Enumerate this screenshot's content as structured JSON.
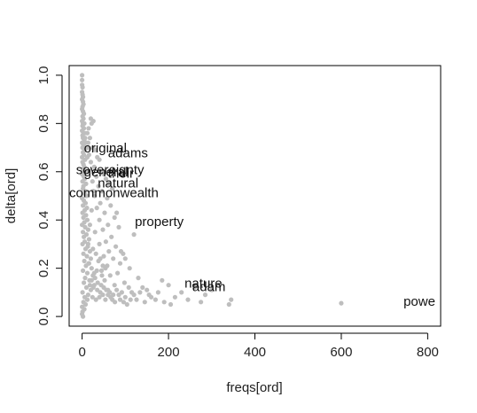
{
  "chart_data": {
    "type": "scatter",
    "title": "",
    "xlabel": "freqs[ord]",
    "ylabel": "delta[ord]",
    "xlim": [
      -30,
      830
    ],
    "ylim": [
      -0.04,
      1.04
    ],
    "xticks": [
      0,
      200,
      400,
      600,
      800
    ],
    "yticks": [
      0.0,
      0.2,
      0.4,
      0.6,
      0.8,
      1.0
    ],
    "xtick_labels": [
      "0",
      "200",
      "400",
      "600",
      "800"
    ],
    "ytick_labels": [
      "0.0",
      "0.2",
      "0.4",
      "0.6",
      "0.8",
      "1.0"
    ],
    "grid": false,
    "point_color": "#BEBEBE",
    "text_color": "#111111",
    "annotations": [
      {
        "text": "original",
        "x": 4,
        "y": 0.68
      },
      {
        "text": "adams",
        "x": 60,
        "y": 0.66
      },
      {
        "text": "sovereignty",
        "x": -14,
        "y": 0.59
      },
      {
        "text": "general",
        "x": 4,
        "y": 0.58
      },
      {
        "text": "their",
        "x": 60,
        "y": 0.575
      },
      {
        "text": "natural",
        "x": 36,
        "y": 0.535
      },
      {
        "text": "commonwealth",
        "x": -30,
        "y": 0.495
      },
      {
        "text": "property",
        "x": 122,
        "y": 0.375
      },
      {
        "text": "nature",
        "x": 237,
        "y": 0.12
      },
      {
        "text": "adam",
        "x": 255,
        "y": 0.105
      },
      {
        "text": "powe",
        "x": 744,
        "y": 0.045
      }
    ],
    "points": [
      [
        0,
        1.0
      ],
      [
        0,
        0.98
      ],
      [
        0,
        0.96
      ],
      [
        1,
        0.95
      ],
      [
        0,
        0.93
      ],
      [
        1,
        0.92
      ],
      [
        0,
        0.9
      ],
      [
        2,
        0.89
      ],
      [
        1,
        0.87
      ],
      [
        0,
        0.86
      ],
      [
        2,
        0.85
      ],
      [
        1,
        0.83
      ],
      [
        3,
        0.82
      ],
      [
        0,
        0.81
      ],
      [
        2,
        0.8
      ],
      [
        1,
        0.79
      ],
      [
        4,
        0.78
      ],
      [
        0,
        0.77
      ],
      [
        3,
        0.76
      ],
      [
        1,
        0.75
      ],
      [
        2,
        0.74
      ],
      [
        5,
        0.73
      ],
      [
        0,
        0.72
      ],
      [
        3,
        0.71
      ],
      [
        1,
        0.7
      ],
      [
        6,
        0.69
      ],
      [
        2,
        0.68
      ],
      [
        4,
        0.67
      ],
      [
        0,
        0.66
      ],
      [
        7,
        0.65
      ],
      [
        1,
        0.64
      ],
      [
        3,
        0.63
      ],
      [
        5,
        0.62
      ],
      [
        2,
        0.61
      ],
      [
        8,
        0.6
      ],
      [
        0,
        0.59
      ],
      [
        4,
        0.58
      ],
      [
        6,
        0.57
      ],
      [
        1,
        0.56
      ],
      [
        9,
        0.55
      ],
      [
        3,
        0.54
      ],
      [
        2,
        0.53
      ],
      [
        7,
        0.52
      ],
      [
        5,
        0.51
      ],
      [
        10,
        0.5
      ],
      [
        0,
        0.49
      ],
      [
        4,
        0.48
      ],
      [
        8,
        0.47
      ],
      [
        2,
        0.46
      ],
      [
        11,
        0.45
      ],
      [
        6,
        0.44
      ],
      [
        1,
        0.43
      ],
      [
        9,
        0.42
      ],
      [
        3,
        0.41
      ],
      [
        12,
        0.4
      ],
      [
        5,
        0.39
      ],
      [
        0,
        0.38
      ],
      [
        7,
        0.37
      ],
      [
        14,
        0.36
      ],
      [
        2,
        0.35
      ],
      [
        10,
        0.34
      ],
      [
        4,
        0.33
      ],
      [
        16,
        0.32
      ],
      [
        6,
        0.31
      ],
      [
        1,
        0.3
      ],
      [
        13,
        0.29
      ],
      [
        8,
        0.28
      ],
      [
        18,
        0.27
      ],
      [
        3,
        0.26
      ],
      [
        11,
        0.25
      ],
      [
        20,
        0.24
      ],
      [
        5,
        0.23
      ],
      [
        15,
        0.22
      ],
      [
        9,
        0.21
      ],
      [
        22,
        0.2
      ],
      [
        2,
        0.19
      ],
      [
        12,
        0.18
      ],
      [
        25,
        0.17
      ],
      [
        7,
        0.16
      ],
      [
        17,
        0.15
      ],
      [
        4,
        0.14
      ],
      [
        28,
        0.13
      ],
      [
        10,
        0.12
      ],
      [
        20,
        0.11
      ],
      [
        1,
        0.1
      ],
      [
        14,
        0.09
      ],
      [
        6,
        0.08
      ],
      [
        3,
        0.06
      ],
      [
        0,
        0.04
      ],
      [
        1,
        0.02
      ],
      [
        0,
        0.01
      ],
      [
        2,
        0.0
      ],
      [
        5,
        0.03
      ],
      [
        8,
        0.05
      ],
      [
        12,
        0.07
      ],
      [
        20,
        0.82
      ],
      [
        22,
        0.8
      ],
      [
        26,
        0.81
      ],
      [
        15,
        0.78
      ],
      [
        12,
        0.76
      ],
      [
        18,
        0.74
      ],
      [
        14,
        0.72
      ],
      [
        25,
        0.7
      ],
      [
        30,
        0.69
      ],
      [
        16,
        0.67
      ],
      [
        35,
        0.66
      ],
      [
        40,
        0.65
      ],
      [
        20,
        0.64
      ],
      [
        28,
        0.62
      ],
      [
        45,
        0.6
      ],
      [
        50,
        0.59
      ],
      [
        33,
        0.58
      ],
      [
        55,
        0.57
      ],
      [
        24,
        0.56
      ],
      [
        62,
        0.55
      ],
      [
        38,
        0.54
      ],
      [
        70,
        0.53
      ],
      [
        46,
        0.52
      ],
      [
        29,
        0.5
      ],
      [
        58,
        0.49
      ],
      [
        42,
        0.47
      ],
      [
        66,
        0.46
      ],
      [
        34,
        0.45
      ],
      [
        52,
        0.43
      ],
      [
        75,
        0.41
      ],
      [
        40,
        0.4
      ],
      [
        60,
        0.38
      ],
      [
        85,
        0.37
      ],
      [
        48,
        0.36
      ],
      [
        30,
        0.35
      ],
      [
        68,
        0.33
      ],
      [
        55,
        0.31
      ],
      [
        40,
        0.3
      ],
      [
        78,
        0.29
      ],
      [
        62,
        0.27
      ],
      [
        95,
        0.26
      ],
      [
        50,
        0.25
      ],
      [
        72,
        0.24
      ],
      [
        38,
        0.23
      ],
      [
        88,
        0.22
      ],
      [
        58,
        0.21
      ],
      [
        110,
        0.2
      ],
      [
        45,
        0.19
      ],
      [
        82,
        0.18
      ],
      [
        65,
        0.17
      ],
      [
        130,
        0.16
      ],
      [
        52,
        0.15
      ],
      [
        98,
        0.14
      ],
      [
        75,
        0.13
      ],
      [
        140,
        0.12
      ],
      [
        60,
        0.11
      ],
      [
        115,
        0.1
      ],
      [
        85,
        0.09
      ],
      [
        160,
        0.08
      ],
      [
        70,
        0.07
      ],
      [
        30,
        0.16
      ],
      [
        36,
        0.14
      ],
      [
        44,
        0.13
      ],
      [
        50,
        0.12
      ],
      [
        56,
        0.11
      ],
      [
        64,
        0.1
      ],
      [
        72,
        0.09
      ],
      [
        80,
        0.11
      ],
      [
        92,
        0.1
      ],
      [
        100,
        0.08
      ],
      [
        108,
        0.12
      ],
      [
        120,
        0.09
      ],
      [
        126,
        0.07
      ],
      [
        134,
        0.1
      ],
      [
        145,
        0.06
      ],
      [
        150,
        0.11
      ],
      [
        155,
        0.09
      ],
      [
        170,
        0.07
      ],
      [
        176,
        0.1
      ],
      [
        185,
        0.15
      ],
      [
        190,
        0.06
      ],
      [
        200,
        0.13
      ],
      [
        205,
        0.05
      ],
      [
        215,
        0.08
      ],
      [
        230,
        0.1
      ],
      [
        245,
        0.07
      ],
      [
        260,
        0.12
      ],
      [
        275,
        0.06
      ],
      [
        285,
        0.09
      ],
      [
        300,
        0.11
      ],
      [
        340,
        0.05
      ],
      [
        345,
        0.07
      ],
      [
        600,
        0.055
      ],
      [
        25,
        0.28
      ],
      [
        32,
        0.26
      ],
      [
        42,
        0.24
      ],
      [
        48,
        0.21
      ],
      [
        54,
        0.2
      ],
      [
        34,
        0.19
      ],
      [
        28,
        0.18
      ],
      [
        46,
        0.17
      ],
      [
        22,
        0.15
      ],
      [
        18,
        0.13
      ],
      [
        26,
        0.12
      ],
      [
        35,
        0.11
      ],
      [
        42,
        0.1
      ],
      [
        48,
        0.09
      ],
      [
        24,
        0.08
      ],
      [
        32,
        0.07
      ],
      [
        40,
        0.08
      ],
      [
        54,
        0.07
      ],
      [
        60,
        0.09
      ],
      [
        66,
        0.08
      ],
      [
        88,
        0.07
      ],
      [
        96,
        0.06
      ],
      [
        104,
        0.05
      ],
      [
        112,
        0.07
      ],
      [
        76,
        0.06
      ],
      [
        16,
        0.22
      ],
      [
        14,
        0.3
      ],
      [
        18,
        0.38
      ],
      [
        22,
        0.44
      ],
      [
        26,
        0.52
      ],
      [
        10,
        0.6
      ],
      [
        12,
        0.66
      ],
      [
        8,
        0.72
      ],
      [
        14,
        0.7
      ],
      [
        6,
        0.76
      ],
      [
        4,
        0.84
      ],
      [
        3,
        0.88
      ],
      [
        2,
        0.91
      ],
      [
        5,
        0.8
      ],
      [
        7,
        0.74
      ],
      [
        120,
        0.34
      ],
      [
        80,
        0.43
      ],
      [
        100,
        0.24
      ],
      [
        90,
        0.27
      ]
    ]
  }
}
